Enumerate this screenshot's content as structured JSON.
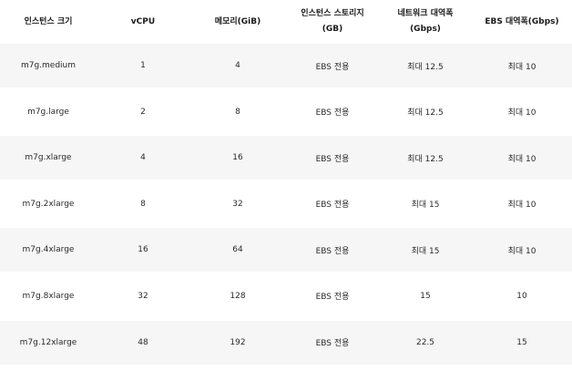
{
  "table": {
    "headers": [
      [
        "인스턴스 크기"
      ],
      [
        "vCPU"
      ],
      [
        "메모리(GiB)"
      ],
      [
        "인스턴스 스토리지",
        "(GB)"
      ],
      [
        "네트워크 대역폭",
        "(Gbps)"
      ],
      [
        "EBS 대역폭(Gbps)"
      ]
    ],
    "rows": [
      [
        "m7g.medium",
        "1",
        "4",
        "EBS 전용",
        "최대 12.5",
        "최대 10"
      ],
      [
        "m7g.large",
        "2",
        "8",
        "EBS 전용",
        "최대 12.5",
        "최대 10"
      ],
      [
        "m7g.xlarge",
        "4",
        "16",
        "EBS 전용",
        "최대 12.5",
        "최대 10"
      ],
      [
        "m7g.2xlarge",
        "8",
        "32",
        "EBS 전용",
        "최대 15",
        "최대 10"
      ],
      [
        "m7g.4xlarge",
        "16",
        "64",
        "EBS 전용",
        "최대 15",
        "최대 10"
      ],
      [
        "m7g.8xlarge",
        "32",
        "128",
        "EBS 전용",
        "15",
        "10"
      ],
      [
        "m7g.12xlarge",
        "48",
        "192",
        "EBS 전용",
        "22.5",
        "15"
      ]
    ]
  },
  "colors": {
    "shaded_row": "#f6f6f6",
    "plain_row": "#ffffff",
    "text": "#2a2a2a"
  }
}
